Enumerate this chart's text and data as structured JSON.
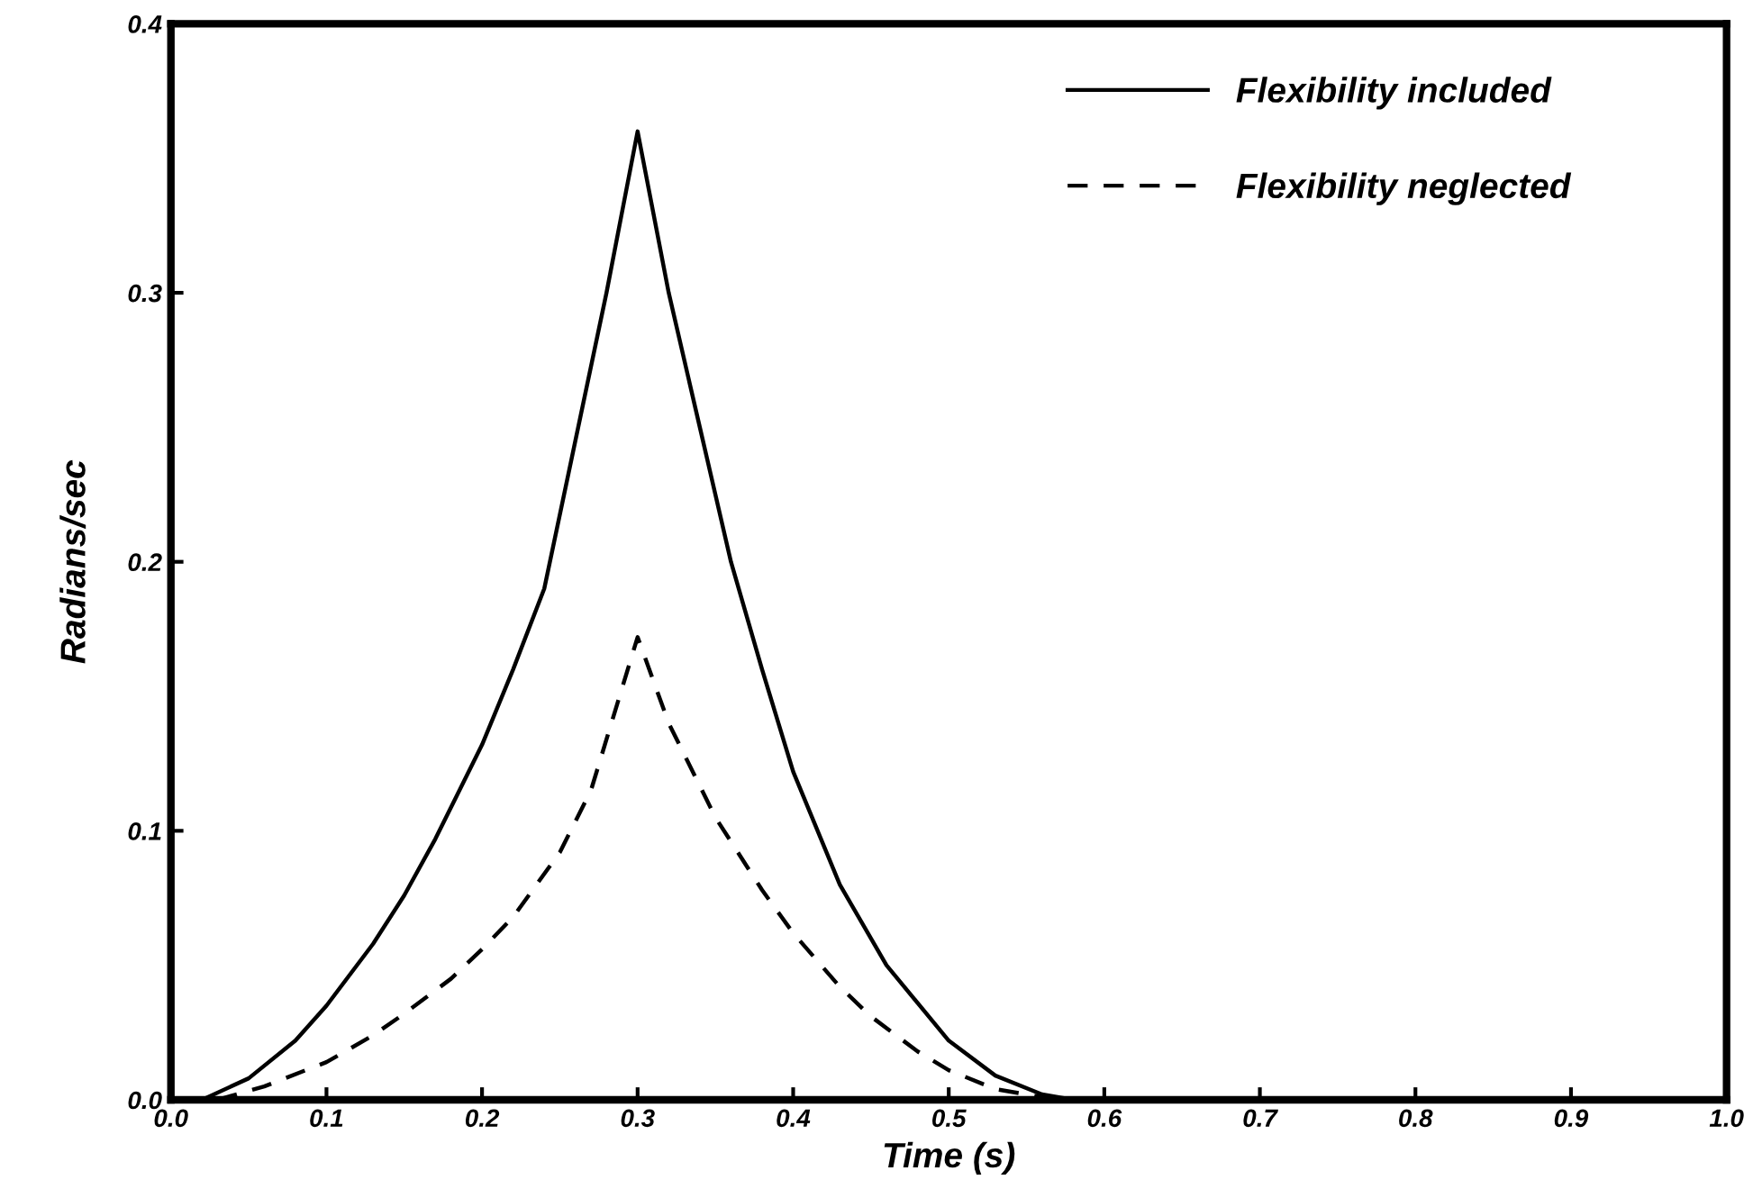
{
  "chart_data": {
    "type": "line",
    "xlabel": "Time (s)",
    "ylabel": "Radians/sec",
    "xlim": [
      0,
      1
    ],
    "ylim": [
      0,
      0.4
    ],
    "xticks": [
      {
        "value": 0,
        "label": "0.0"
      },
      0.1,
      0.2,
      0.3,
      0.4,
      0.5,
      0.6,
      0.7,
      0.8,
      0.9,
      {
        "value": 1,
        "label": "1.0"
      }
    ],
    "yticks": [
      {
        "value": 0,
        "label": "0.0"
      },
      0.1,
      0.2,
      0.3,
      0.4
    ],
    "grid": false,
    "legend": "top right",
    "marker": "none",
    "series": [
      {
        "name": "Flexibility included",
        "color": "#000000",
        "line_style": "solid",
        "x": [
          0,
          0.02,
          0.05,
          0.08,
          0.1,
          0.13,
          0.15,
          0.17,
          0.2,
          0.22,
          0.24,
          0.26,
          0.28,
          0.3,
          0.32,
          0.34,
          0.36,
          0.38,
          0.4,
          0.43,
          0.46,
          0.5,
          0.53,
          0.56,
          0.58,
          1.0
        ],
        "values": [
          0,
          0,
          0.008,
          0.022,
          0.035,
          0.058,
          0.076,
          0.097,
          0.132,
          0.16,
          0.19,
          0.245,
          0.3,
          0.36,
          0.3,
          0.25,
          0.2,
          0.16,
          0.122,
          0.08,
          0.05,
          0.022,
          0.009,
          0.002,
          0,
          0
        ]
      },
      {
        "name": "Flexibility neglected",
        "color": "#000000",
        "line_style": "dashed",
        "x": [
          0.03,
          0.06,
          0.1,
          0.13,
          0.15,
          0.18,
          0.2,
          0.22,
          0.25,
          0.27,
          0.3,
          0.32,
          0.35,
          0.38,
          0.4,
          0.43,
          0.45,
          0.48,
          0.5,
          0.53,
          0.57
        ],
        "values": [
          0,
          0.005,
          0.014,
          0.024,
          0.032,
          0.045,
          0.056,
          0.068,
          0.092,
          0.115,
          0.172,
          0.14,
          0.105,
          0.078,
          0.062,
          0.042,
          0.031,
          0.018,
          0.011,
          0.004,
          0
        ]
      }
    ]
  }
}
